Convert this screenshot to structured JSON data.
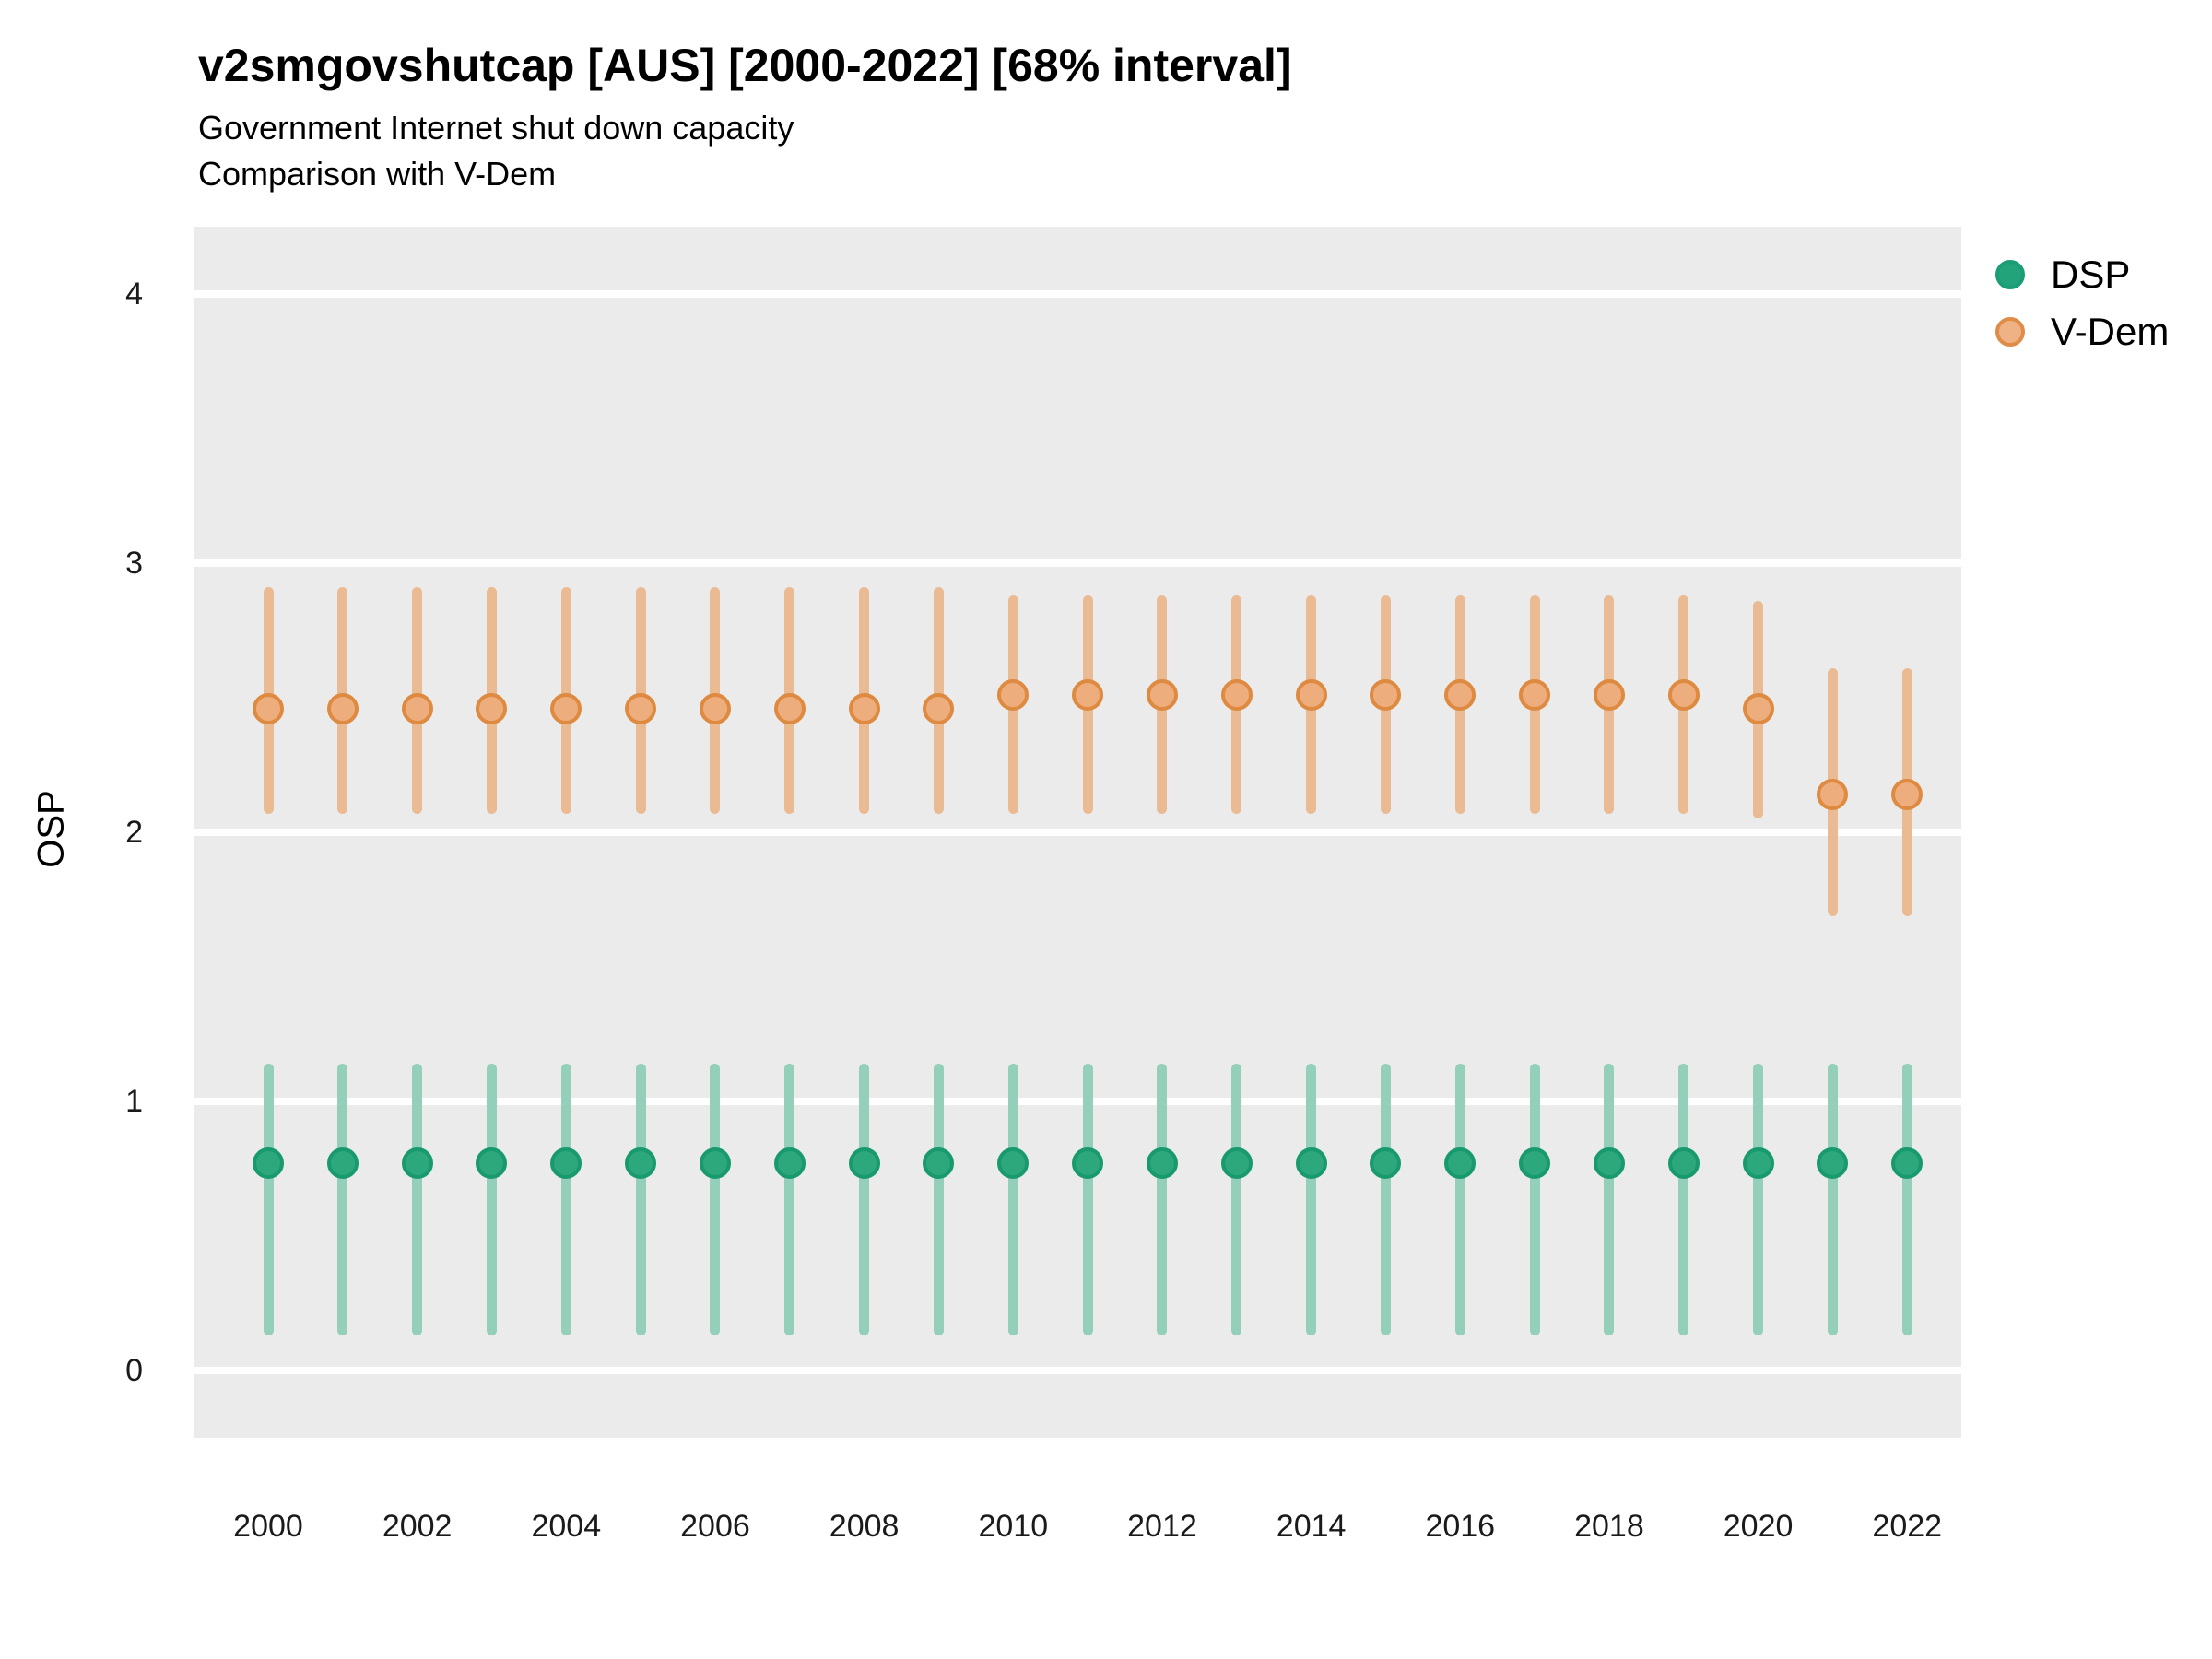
{
  "chart": {
    "title": "v2smgovshutcap [AUS] [2000-2022] [68% interval]",
    "subtitle1": "Government Internet shut down capacity",
    "subtitle2": "Comparison with V-Dem",
    "ylabel": "OSP",
    "panel_bg": "#EBEBEB",
    "gridline_color": "#FFFFFF"
  },
  "chart_data": {
    "type": "pointrange",
    "title": "v2smgovshutcap [AUS] [2000-2022] [68% interval]",
    "subtitle": "Government Internet shut down capacity\nComparison with V-Dem",
    "xlabel": "",
    "ylabel": "OSP",
    "ylim": [
      -0.25,
      4.25
    ],
    "xlim": [
      1999,
      2023
    ],
    "yticks": [
      0,
      1,
      2,
      3,
      4
    ],
    "xticks": [
      2000,
      2002,
      2004,
      2006,
      2008,
      2010,
      2012,
      2014,
      2016,
      2018,
      2020,
      2022
    ],
    "grid": "horizontal-only",
    "legend_position": "right",
    "series": [
      {
        "name": "DSP",
        "color_fill": "#2DA77C",
        "color_stroke": "#189A6E",
        "color_range": "#93CFB9",
        "legend_fill": "#23A379",
        "legend_ring": "#1B9E77",
        "points": [
          {
            "year": 2000,
            "mid": 0.77,
            "lo": 0.13,
            "hi": 1.14
          },
          {
            "year": 2001,
            "mid": 0.77,
            "lo": 0.13,
            "hi": 1.14
          },
          {
            "year": 2002,
            "mid": 0.77,
            "lo": 0.13,
            "hi": 1.14
          },
          {
            "year": 2003,
            "mid": 0.77,
            "lo": 0.13,
            "hi": 1.14
          },
          {
            "year": 2004,
            "mid": 0.77,
            "lo": 0.13,
            "hi": 1.14
          },
          {
            "year": 2005,
            "mid": 0.77,
            "lo": 0.13,
            "hi": 1.14
          },
          {
            "year": 2006,
            "mid": 0.77,
            "lo": 0.13,
            "hi": 1.14
          },
          {
            "year": 2007,
            "mid": 0.77,
            "lo": 0.13,
            "hi": 1.14
          },
          {
            "year": 2008,
            "mid": 0.77,
            "lo": 0.13,
            "hi": 1.14
          },
          {
            "year": 2009,
            "mid": 0.77,
            "lo": 0.13,
            "hi": 1.14
          },
          {
            "year": 2010,
            "mid": 0.77,
            "lo": 0.13,
            "hi": 1.14
          },
          {
            "year": 2011,
            "mid": 0.77,
            "lo": 0.13,
            "hi": 1.14
          },
          {
            "year": 2012,
            "mid": 0.77,
            "lo": 0.13,
            "hi": 1.14
          },
          {
            "year": 2013,
            "mid": 0.77,
            "lo": 0.13,
            "hi": 1.14
          },
          {
            "year": 2014,
            "mid": 0.77,
            "lo": 0.13,
            "hi": 1.14
          },
          {
            "year": 2015,
            "mid": 0.77,
            "lo": 0.13,
            "hi": 1.14
          },
          {
            "year": 2016,
            "mid": 0.77,
            "lo": 0.13,
            "hi": 1.14
          },
          {
            "year": 2017,
            "mid": 0.77,
            "lo": 0.13,
            "hi": 1.14
          },
          {
            "year": 2018,
            "mid": 0.77,
            "lo": 0.13,
            "hi": 1.14
          },
          {
            "year": 2019,
            "mid": 0.77,
            "lo": 0.13,
            "hi": 1.14
          },
          {
            "year": 2020,
            "mid": 0.77,
            "lo": 0.13,
            "hi": 1.14
          },
          {
            "year": 2021,
            "mid": 0.77,
            "lo": 0.13,
            "hi": 1.14
          },
          {
            "year": 2022,
            "mid": 0.77,
            "lo": 0.13,
            "hi": 1.14
          }
        ]
      },
      {
        "name": "V-Dem",
        "color_fill": "#EDAD7C",
        "color_stroke": "#DE8A41",
        "color_range": "#EABA92",
        "legend_fill": "#EFB285",
        "legend_ring": "#E08C49",
        "points": [
          {
            "year": 2000,
            "mid": 2.46,
            "lo": 2.07,
            "hi": 2.91
          },
          {
            "year": 2001,
            "mid": 2.46,
            "lo": 2.07,
            "hi": 2.91
          },
          {
            "year": 2002,
            "mid": 2.46,
            "lo": 2.07,
            "hi": 2.91
          },
          {
            "year": 2003,
            "mid": 2.46,
            "lo": 2.07,
            "hi": 2.91
          },
          {
            "year": 2004,
            "mid": 2.46,
            "lo": 2.07,
            "hi": 2.91
          },
          {
            "year": 2005,
            "mid": 2.46,
            "lo": 2.07,
            "hi": 2.91
          },
          {
            "year": 2006,
            "mid": 2.46,
            "lo": 2.07,
            "hi": 2.91
          },
          {
            "year": 2007,
            "mid": 2.46,
            "lo": 2.07,
            "hi": 2.91
          },
          {
            "year": 2008,
            "mid": 2.46,
            "lo": 2.07,
            "hi": 2.91
          },
          {
            "year": 2009,
            "mid": 2.46,
            "lo": 2.07,
            "hi": 2.91
          },
          {
            "year": 2010,
            "mid": 2.51,
            "lo": 2.07,
            "hi": 2.88
          },
          {
            "year": 2011,
            "mid": 2.51,
            "lo": 2.07,
            "hi": 2.88
          },
          {
            "year": 2012,
            "mid": 2.51,
            "lo": 2.07,
            "hi": 2.88
          },
          {
            "year": 2013,
            "mid": 2.51,
            "lo": 2.07,
            "hi": 2.88
          },
          {
            "year": 2014,
            "mid": 2.51,
            "lo": 2.07,
            "hi": 2.88
          },
          {
            "year": 2015,
            "mid": 2.51,
            "lo": 2.07,
            "hi": 2.88
          },
          {
            "year": 2016,
            "mid": 2.51,
            "lo": 2.07,
            "hi": 2.88
          },
          {
            "year": 2017,
            "mid": 2.51,
            "lo": 2.07,
            "hi": 2.88
          },
          {
            "year": 2018,
            "mid": 2.51,
            "lo": 2.07,
            "hi": 2.88
          },
          {
            "year": 2019,
            "mid": 2.51,
            "lo": 2.07,
            "hi": 2.88
          },
          {
            "year": 2020,
            "mid": 2.46,
            "lo": 2.05,
            "hi": 2.86
          },
          {
            "year": 2021,
            "mid": 2.14,
            "lo": 1.69,
            "hi": 2.61
          },
          {
            "year": 2022,
            "mid": 2.14,
            "lo": 1.69,
            "hi": 2.61
          }
        ]
      }
    ]
  }
}
